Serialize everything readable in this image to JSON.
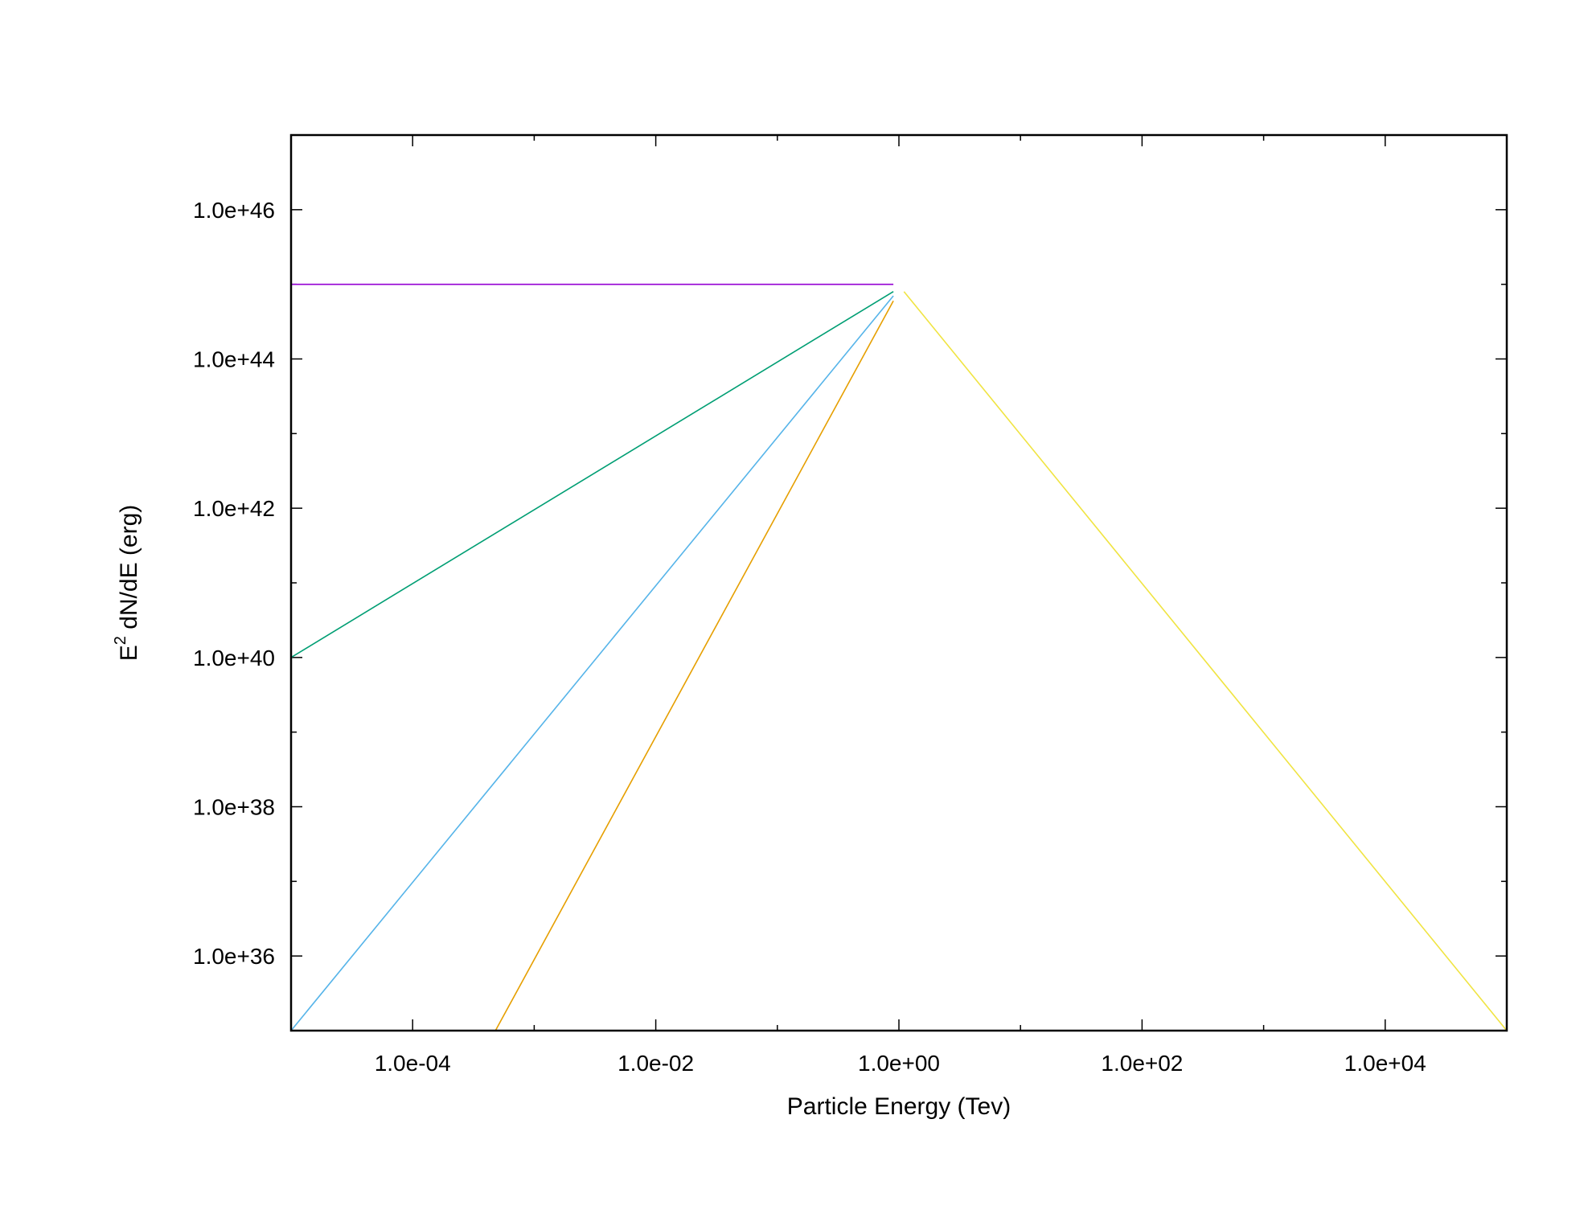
{
  "chart_data": {
    "type": "line",
    "xlabel": "Particle Energy (Tev)",
    "ylabel": {
      "base": "E",
      "superscript": "2",
      "rest": " dN/dE (erg)"
    },
    "x_scale": "log",
    "y_scale": "log",
    "xlim": [
      1e-05,
      100000.0
    ],
    "ylim": [
      1e+35,
      1e+47
    ],
    "x_major_ticks": [
      0.0001,
      0.01,
      1.0,
      100.0,
      10000.0
    ],
    "x_tick_labels": [
      "1.0e-04",
      "1.0e-02",
      "1.0e+00",
      "1.0e+02",
      "1.0e+04"
    ],
    "y_major_ticks": [
      1e+36,
      1e+38,
      1e+40,
      1e+42,
      1e+44,
      1e+46
    ],
    "y_tick_labels": [
      "1.0e+36",
      "1.0e+38",
      "1.0e+40",
      "1.0e+42",
      "1.0e+44",
      "1.0e+46"
    ],
    "grid": false,
    "legend": "none",
    "series": [
      {
        "color": "#9400d3",
        "x": [
          1e-05,
          0.9
        ],
        "y": [
          1e+45,
          1e+45
        ]
      },
      {
        "color": "#009e73",
        "x": [
          1e-05,
          0.9
        ],
        "y": [
          1e+40,
          8e+44
        ]
      },
      {
        "color": "#56b4e9",
        "x": [
          1e-05,
          0.9
        ],
        "y": [
          1e+35,
          7e+44
        ]
      },
      {
        "color": "#e69f00",
        "x": [
          0.00048,
          0.9
        ],
        "y": [
          1e+35,
          6e+44
        ]
      },
      {
        "color": "#f0e442",
        "x": [
          1.1,
          100000.0
        ],
        "y": [
          8e+44,
          1e+35
        ]
      }
    ]
  }
}
